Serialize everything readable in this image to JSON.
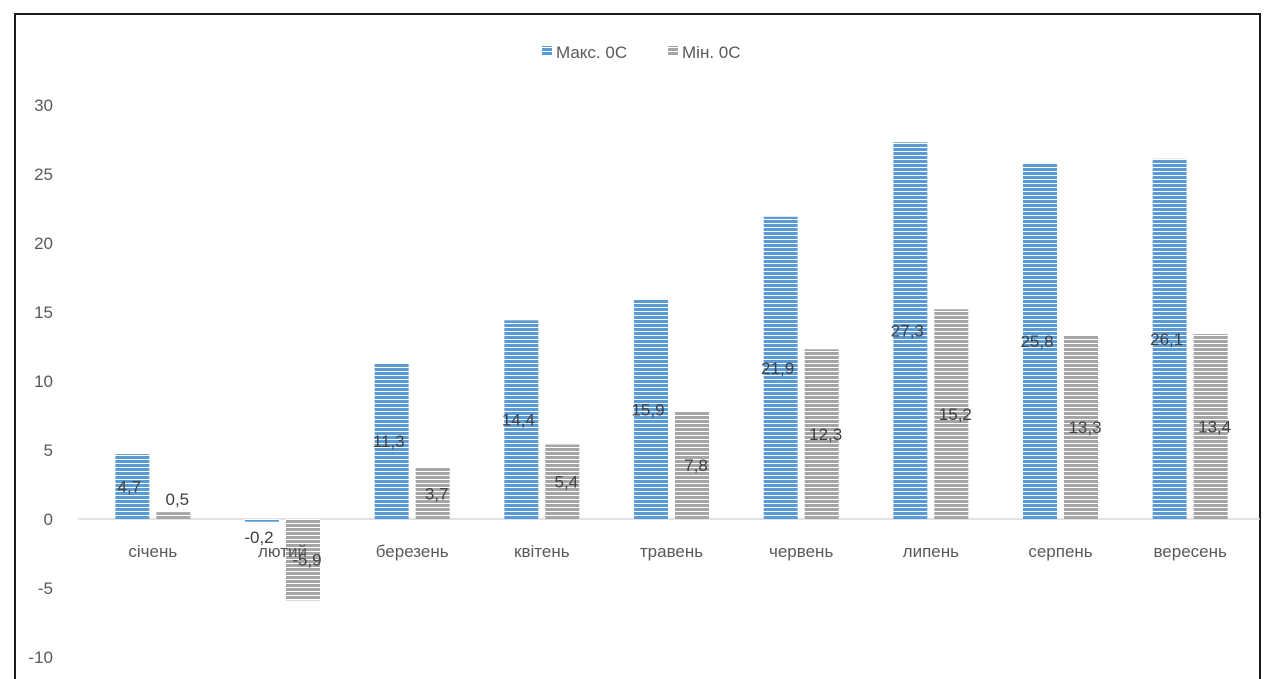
{
  "chart_data": {
    "type": "bar",
    "title": "",
    "xlabel": "",
    "ylabel": "",
    "categories": [
      "січень",
      "лютий",
      "березень",
      "квітень",
      "травень",
      "червень",
      "липень",
      "серпень",
      "вересень"
    ],
    "series": [
      {
        "name": "Макс. 0С",
        "color": "#5b9bd5",
        "values": [
          4.7,
          -0.2,
          11.3,
          14.4,
          15.9,
          21.9,
          27.3,
          25.8,
          26.1
        ],
        "labels": [
          "4,7",
          "-0,2",
          "11,3",
          "14,4",
          "15,9",
          "21,9",
          "27,3",
          "25,8",
          "26,1"
        ]
      },
      {
        "name": "Мін. 0С",
        "color": "#a5a5a5",
        "values": [
          0.5,
          -5.9,
          3.7,
          5.4,
          7.8,
          12.3,
          15.2,
          13.3,
          13.4
        ],
        "labels": [
          "0,5",
          "-5,9",
          "3,7",
          "5,4",
          "7,8",
          "12,3",
          "15,2",
          "13,3",
          "13,4"
        ]
      }
    ],
    "ylim": [
      -10,
      30
    ],
    "yticks": [
      30,
      25,
      20,
      15,
      10,
      5,
      0,
      -5,
      -10
    ],
    "grid": false,
    "legend": "top-center",
    "bar_pattern": "horizontal-stripes"
  }
}
